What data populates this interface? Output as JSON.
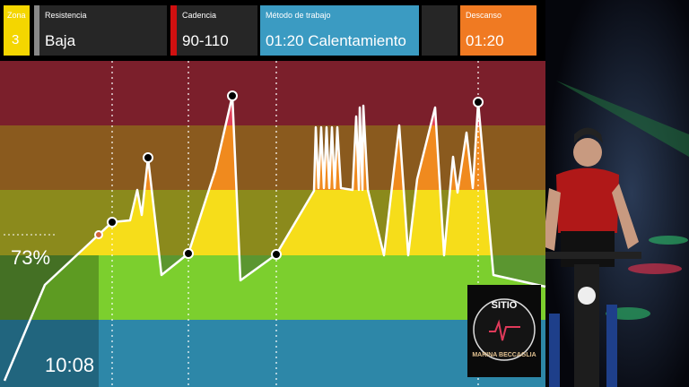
{
  "header": {
    "zone": {
      "label": "Zona",
      "value": "3"
    },
    "resistance": {
      "label": "Resistencia",
      "value": "Baja"
    },
    "cadence": {
      "label": "Cadencia",
      "value": "90-110"
    },
    "method": {
      "label": "Método de trabajo",
      "value": "01:20 Calentamiento"
    },
    "rest": {
      "label": "Descanso",
      "value": "01:20"
    }
  },
  "overlay": {
    "percent": "73%",
    "time": "10:08"
  },
  "logo": {
    "top": "SITIO",
    "bottom": "MARINA BECCAGLIA"
  }
}
